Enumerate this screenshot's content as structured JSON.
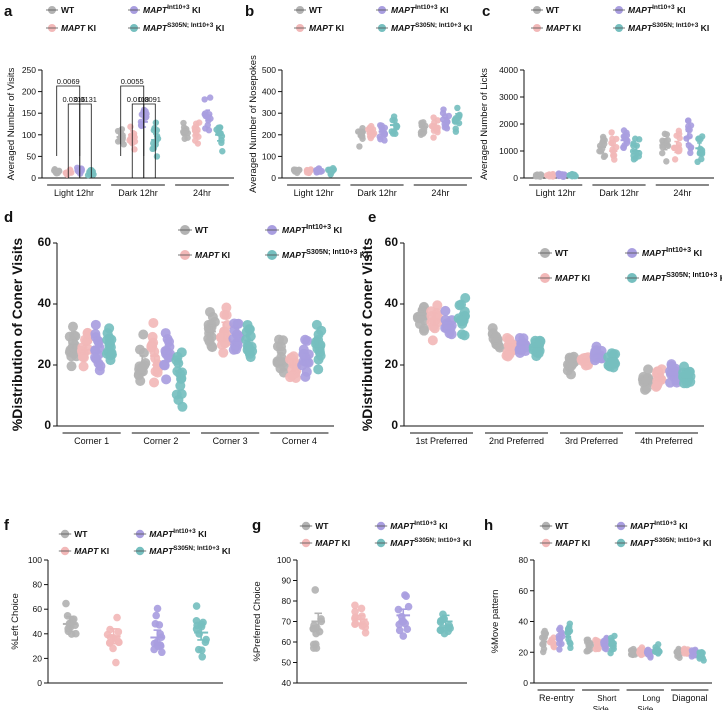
{
  "legend": {
    "labels": [
      {
        "base": "WT",
        "sup": "",
        "suffix": ""
      },
      {
        "base": "MAPT",
        "sup": "",
        "suffix": " KI"
      },
      {
        "base": "MAPT",
        "sup": "Int10+3",
        "suffix": " KI"
      },
      {
        "base": "MAPT",
        "sup": "S305N; Int10+3",
        "suffix": " KI"
      }
    ],
    "colors": [
      "#b3b3b3",
      "#f2b8b8",
      "#a99ee0",
      "#76bfbf"
    ]
  },
  "chart_data": [
    {
      "panel": "a",
      "type": "scatter",
      "ylabel": "Averaged Number of Visits",
      "ylim": [
        0,
        250
      ],
      "yticks": [
        0,
        50,
        100,
        150,
        200,
        250
      ],
      "categories": [
        "Light 12hr",
        "Dark 12hr",
        "24hr"
      ],
      "series": [
        {
          "name": "WT",
          "means": [
            15,
            95,
            105
          ],
          "sems": [
            2,
            8,
            7
          ]
        },
        {
          "name": "MAPT KI",
          "means": [
            13,
            100,
            108
          ],
          "sems": [
            3,
            9,
            9
          ]
        },
        {
          "name": "MAPT Int10+3 KI",
          "means": [
            17,
            130,
            145
          ],
          "sems": [
            3,
            12,
            12
          ]
        },
        {
          "name": "MAPT S305N; Int10+3 KI",
          "means": [
            15,
            88,
            100
          ],
          "sems": [
            3,
            14,
            14
          ]
        }
      ],
      "annotations": [
        {
          "text": "0.0069",
          "from": 0,
          "to": 2,
          "level": 3
        },
        {
          "text": "0.0316",
          "from": 1,
          "to": 2,
          "level": 2
        },
        {
          "text": "0.0131",
          "from": 2,
          "to": 3,
          "level": 2
        },
        {
          "text": "0.0055",
          "from": 4,
          "to": 6,
          "level": 3
        },
        {
          "text": "0.0118",
          "from": 5,
          "to": 6,
          "level": 2
        },
        {
          "text": "0.0091",
          "from": 6,
          "to": 7,
          "level": 2
        }
      ]
    },
    {
      "panel": "b",
      "type": "scatter",
      "ylabel": "Averaged Number of Nosepokes",
      "ylim": [
        0,
        500
      ],
      "yticks": [
        0,
        100,
        200,
        300,
        400,
        500
      ],
      "categories": [
        "Light 12hr",
        "Dark 12hr",
        "24hr"
      ],
      "series": [
        {
          "name": "WT",
          "means": [
            35,
            210,
            235
          ],
          "sems": [
            3,
            15,
            15
          ]
        },
        {
          "name": "MAPT KI",
          "means": [
            33,
            205,
            235
          ],
          "sems": [
            4,
            15,
            15
          ]
        },
        {
          "name": "MAPT Int10+3 KI",
          "means": [
            35,
            215,
            260
          ],
          "sems": [
            4,
            15,
            18
          ]
        },
        {
          "name": "MAPT S305N; Int10+3 KI",
          "means": [
            33,
            245,
            275
          ],
          "sems": [
            5,
            25,
            22
          ]
        }
      ]
    },
    {
      "panel": "c",
      "type": "scatter",
      "ylabel": "Averaged Number of Licks",
      "ylim": [
        0,
        4000
      ],
      "yticks": [
        0,
        1000,
        2000,
        3000,
        4000
      ],
      "categories": [
        "Light 12hr",
        "Dark 12hr",
        "24hr"
      ],
      "series": [
        {
          "name": "WT",
          "means": [
            90,
            1150,
            1250
          ],
          "sems": [
            20,
            200,
            200
          ]
        },
        {
          "name": "MAPT KI",
          "means": [
            90,
            1000,
            1150
          ],
          "sems": [
            25,
            200,
            200
          ]
        },
        {
          "name": "MAPT Int10+3 KI",
          "means": [
            100,
            1400,
            1500
          ],
          "sems": [
            25,
            230,
            230
          ]
        },
        {
          "name": "MAPT S305N; Int10+3 KI",
          "means": [
            90,
            1000,
            1100
          ],
          "sems": [
            25,
            200,
            200
          ]
        }
      ]
    },
    {
      "panel": "d",
      "type": "scatter",
      "ylabel": "%Distribution of Coner Visits",
      "ylim": [
        0,
        60
      ],
      "yticks": [
        0,
        20,
        40,
        60
      ],
      "categories": [
        "Corner 1",
        "Corner 2",
        "Corner 3",
        "Corner 4"
      ],
      "series": [
        {
          "name": "WT",
          "means": [
            27,
            20,
            31,
            22
          ],
          "sems": [
            2,
            3,
            2,
            2
          ]
        },
        {
          "name": "MAPT KI",
          "means": [
            25,
            23,
            31,
            20
          ],
          "sems": [
            1.5,
            3,
            3,
            2
          ]
        },
        {
          "name": "MAPT Int10+3 KI",
          "means": [
            26,
            23,
            30,
            22
          ],
          "sems": [
            2,
            2,
            2,
            2
          ]
        },
        {
          "name": "MAPT S305N; Int10+3 KI",
          "means": [
            27,
            18,
            28,
            26
          ],
          "sems": [
            3,
            3,
            2,
            2
          ]
        }
      ]
    },
    {
      "panel": "e",
      "type": "scatter",
      "ylabel": "%Distribution of Coner Visits",
      "ylim": [
        0,
        60
      ],
      "yticks": [
        0,
        20,
        40,
        60
      ],
      "categories": [
        "1st Preferred",
        "2nd Preferred",
        "3rd Preferred",
        "4th Preferred"
      ],
      "series": [
        {
          "name": "WT",
          "means": [
            36,
            28,
            20,
            15
          ],
          "sems": [
            1.5,
            1,
            1,
            1
          ]
        },
        {
          "name": "MAPT KI",
          "means": [
            35,
            26,
            21,
            16
          ],
          "sems": [
            2,
            1,
            1,
            1
          ]
        },
        {
          "name": "MAPT Int10+3 KI",
          "means": [
            33,
            27,
            23,
            17
          ],
          "sems": [
            1.5,
            1,
            1,
            1
          ]
        },
        {
          "name": "MAPT S305N; Int10+3 KI",
          "means": [
            35,
            26,
            22,
            16
          ],
          "sems": [
            2,
            1,
            1,
            1
          ]
        }
      ]
    },
    {
      "panel": "f",
      "type": "scatter",
      "ylabel": "%Left Choice",
      "ylim": [
        0,
        100
      ],
      "yticks": [
        0,
        20,
        40,
        60,
        80,
        100
      ],
      "categories": [
        "WT",
        "MAPT KI",
        "MAPT Int10+3 KI",
        "MAPT S305N; Int10+3 KI"
      ],
      "series": [
        {
          "name": "WT",
          "means": [
            48
          ],
          "sems": [
            6
          ]
        },
        {
          "name": "MAPT KI",
          "means": [
            38
          ],
          "sems": [
            6
          ]
        },
        {
          "name": "MAPT Int10+3 KI",
          "means": [
            37
          ],
          "sems": [
            6
          ]
        },
        {
          "name": "MAPT S305N; Int10+3 KI",
          "means": [
            41
          ],
          "sems": [
            6
          ]
        }
      ]
    },
    {
      "panel": "g",
      "type": "scatter",
      "ylabel": "%Preferred Choice",
      "ylim": [
        40,
        100
      ],
      "yticks": [
        40,
        50,
        60,
        70,
        80,
        90,
        100
      ],
      "categories": [
        "WT",
        "MAPT KI",
        "MAPT Int10+3 KI",
        "MAPT S305N; Int10+3 KI"
      ],
      "series": [
        {
          "name": "WT",
          "means": [
            70
          ],
          "sems": [
            4
          ]
        },
        {
          "name": "MAPT KI",
          "means": [
            71
          ],
          "sems": [
            2
          ]
        },
        {
          "name": "MAPT Int10+3 KI",
          "means": [
            73
          ],
          "sems": [
            3
          ]
        },
        {
          "name": "MAPT S305N; Int10+3 KI",
          "means": [
            70
          ],
          "sems": [
            3
          ]
        }
      ]
    },
    {
      "panel": "h",
      "type": "scatter",
      "ylabel": "%Move pattern",
      "ylim": [
        0,
        80
      ],
      "yticks": [
        0,
        20,
        40,
        60,
        80
      ],
      "categories": [
        "Re-entry",
        "Short Side",
        "Long Side",
        "Diagonal"
      ],
      "series": [
        {
          "name": "WT",
          "means": [
            27,
            25,
            20,
            20
          ],
          "sems": [
            3,
            2,
            1,
            1
          ]
        },
        {
          "name": "MAPT KI",
          "means": [
            26,
            25,
            20,
            20
          ],
          "sems": [
            2,
            2,
            1,
            1
          ]
        },
        {
          "name": "MAPT Int10+3 KI",
          "means": [
            28,
            25,
            20,
            20
          ],
          "sems": [
            3,
            2,
            1,
            1
          ]
        },
        {
          "name": "MAPT S305N; Int10+3 KI",
          "means": [
            30,
            25,
            21,
            18
          ],
          "sems": [
            4,
            2,
            1,
            1
          ]
        }
      ]
    }
  ]
}
